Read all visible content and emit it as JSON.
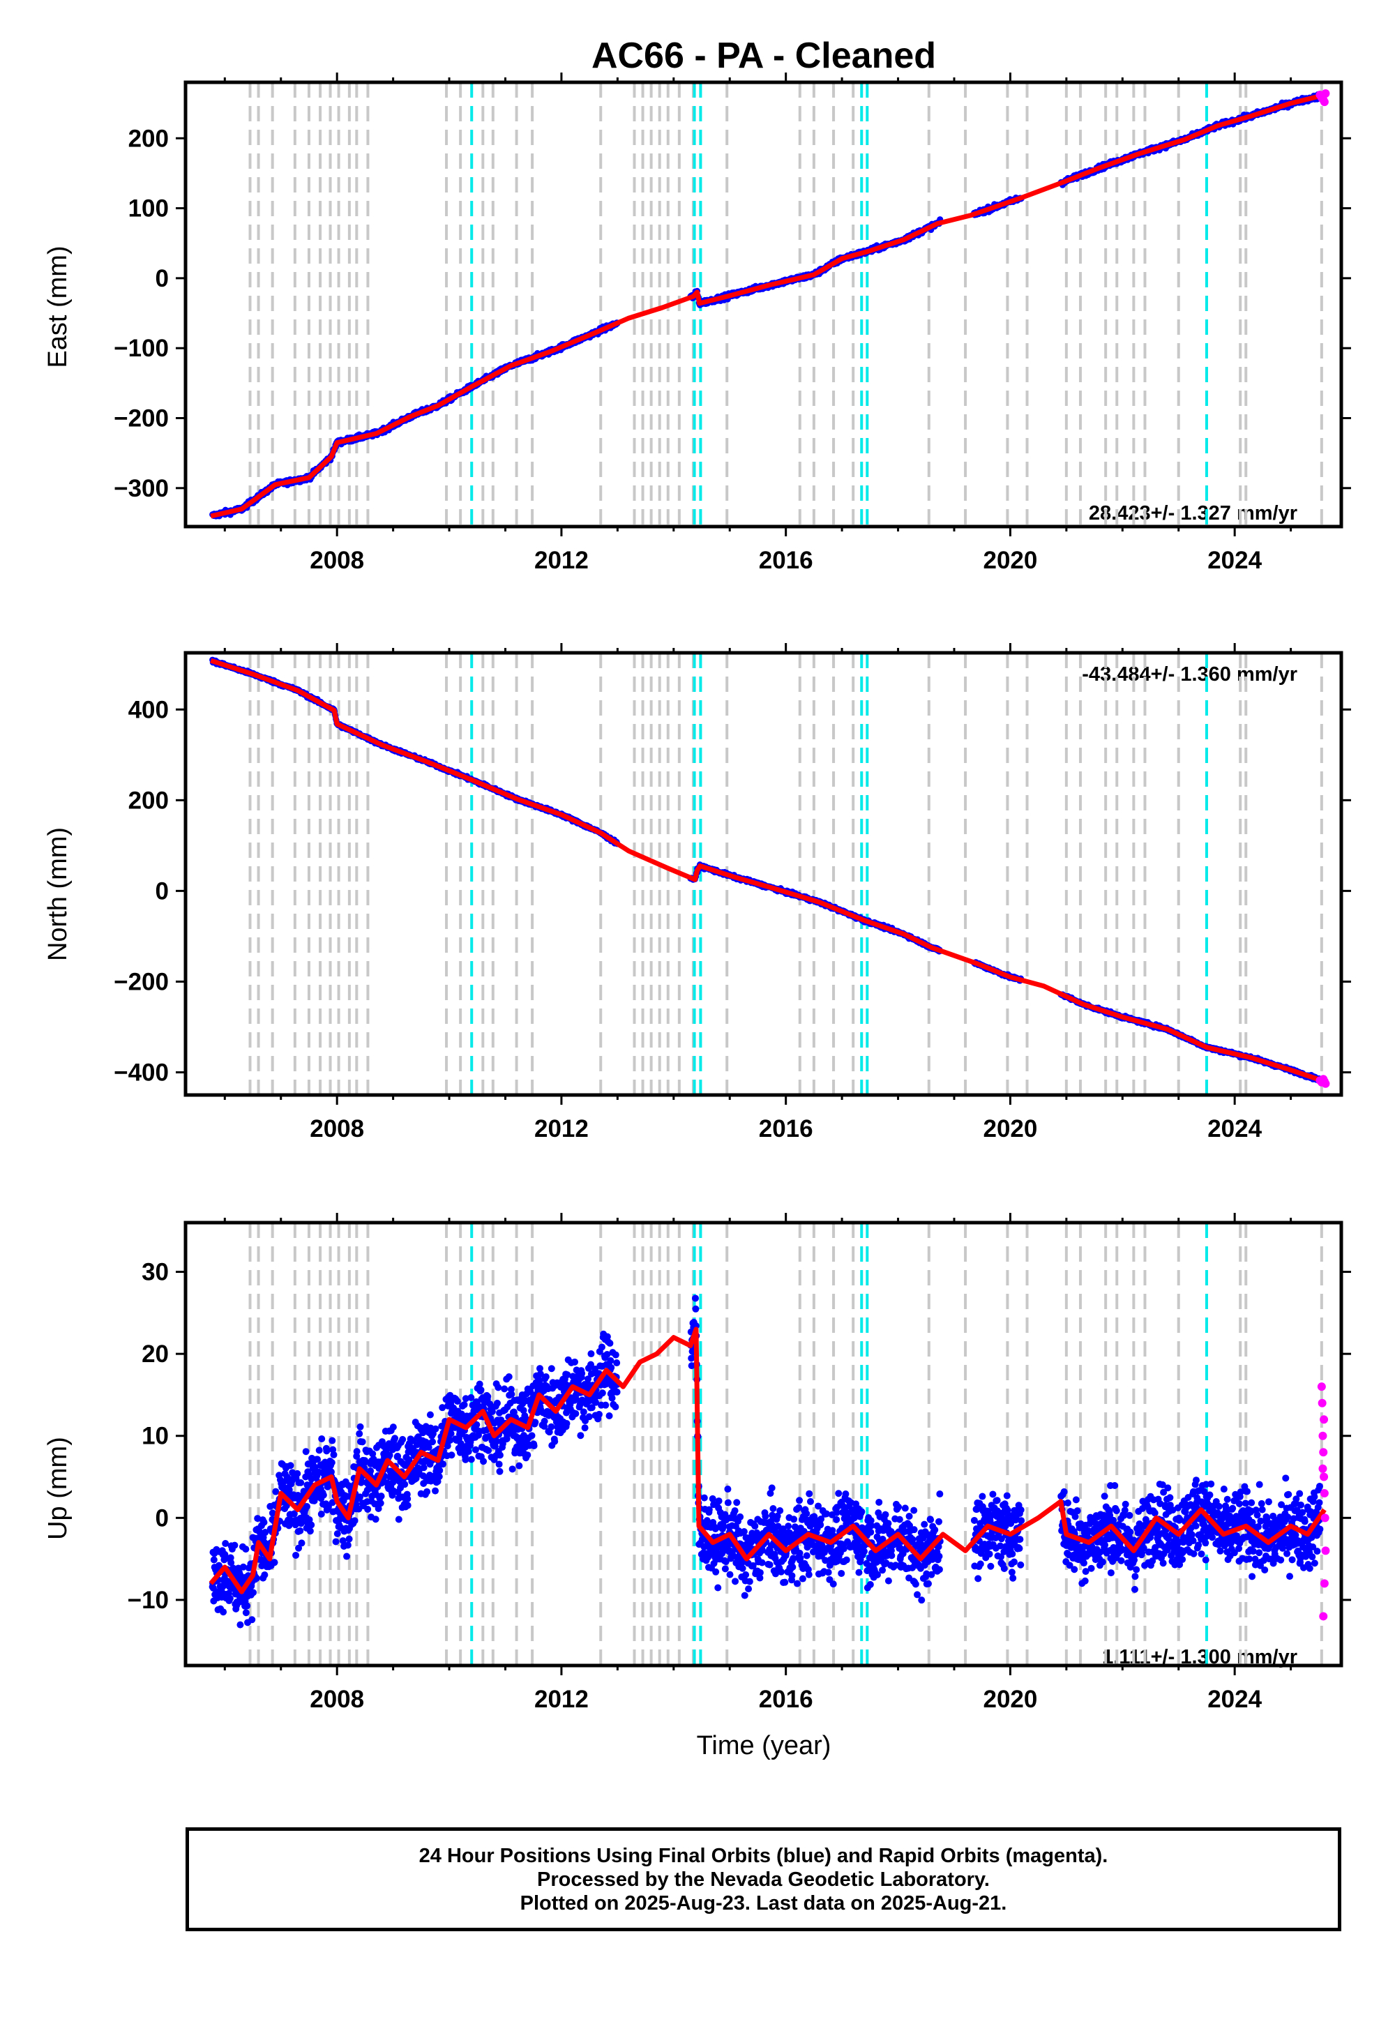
{
  "title": "AC66  - PA - Cleaned",
  "x_label": "Time (year)",
  "footer": {
    "line1": "24 Hour Positions Using Final Orbits (blue) and Rapid Orbits (magenta).",
    "line2": "Processed by the Nevada Geodetic Laboratory.",
    "line3": "Plotted on 2025-Aug-23. Last data on 2025-Aug-21."
  },
  "colors": {
    "final": "#0000ff",
    "rapid": "#ff00ff",
    "model": "#ff0000",
    "equipment_change": "#c8c8c8",
    "earthquake": "#00eaea"
  },
  "chart_data": [
    {
      "type": "scatter",
      "component": "east",
      "ylabel": "East (mm)",
      "rate_label": "28.423+/- 1.327 mm/yr",
      "xlim": [
        2005.3,
        2025.9
      ],
      "ylim": [
        -355,
        280
      ],
      "x_ticks": [
        "2008",
        "2012",
        "2016",
        "2020",
        "2024"
      ],
      "y_ticks": [
        -300,
        -200,
        -100,
        0,
        100,
        200
      ],
      "model": [
        [
          2005.75,
          -340
        ],
        [
          2006.3,
          -330
        ],
        [
          2006.9,
          -295
        ],
        [
          2007.5,
          -285
        ],
        [
          2007.9,
          -255
        ],
        [
          2008.0,
          -235
        ],
        [
          2008.7,
          -222
        ],
        [
          2009.3,
          -198
        ],
        [
          2009.8,
          -182
        ],
        [
          2010.4,
          -155
        ],
        [
          2011.1,
          -125
        ],
        [
          2011.8,
          -105
        ],
        [
          2012.6,
          -78
        ],
        [
          2013.2,
          -57
        ],
        [
          2013.8,
          -42
        ],
        [
          2014.35,
          -26
        ],
        [
          2014.42,
          -20
        ],
        [
          2014.46,
          -36
        ],
        [
          2015.0,
          -25
        ],
        [
          2015.7,
          -10
        ],
        [
          2016.5,
          5
        ],
        [
          2017.0,
          28
        ],
        [
          2017.45,
          38
        ],
        [
          2018.1,
          55
        ],
        [
          2018.7,
          78
        ],
        [
          2019.3,
          90
        ],
        [
          2020.2,
          115
        ],
        [
          2020.9,
          136
        ],
        [
          2021.6,
          158
        ],
        [
          2022.3,
          178
        ],
        [
          2023.1,
          198
        ],
        [
          2023.7,
          218
        ],
        [
          2024.3,
          232
        ],
        [
          2025.0,
          250
        ],
        [
          2025.6,
          262
        ]
      ],
      "rapid_points": [
        [
          2025.52,
          262
        ],
        [
          2025.55,
          258
        ],
        [
          2025.58,
          255
        ],
        [
          2025.6,
          252
        ],
        [
          2025.62,
          264
        ]
      ],
      "equipment_changes": [
        2006.45,
        2006.6,
        2006.85,
        2007.25,
        2007.5,
        2007.7,
        2007.88,
        2008.03,
        2008.22,
        2008.35,
        2008.55,
        2009.95,
        2010.2,
        2010.6,
        2010.78,
        2011.2,
        2011.48,
        2012.7,
        2013.3,
        2013.45,
        2013.6,
        2013.75,
        2013.9,
        2014.1,
        2014.35,
        2014.95,
        2016.25,
        2016.5,
        2016.85,
        2017.2,
        2018.55,
        2019.2,
        2019.95,
        2020.3,
        2021.0,
        2021.25,
        2021.7,
        2021.9,
        2022.2,
        2022.4,
        2023.0,
        2024.1,
        2024.2,
        2025.55
      ],
      "earthquakes": [
        2010.4,
        2014.37,
        2014.48,
        2017.35,
        2017.45,
        2023.5
      ]
    },
    {
      "type": "scatter",
      "component": "north",
      "ylabel": "North (mm)",
      "rate_label": "-43.484+/- 1.360 mm/yr",
      "xlim": [
        2005.3,
        2025.9
      ],
      "ylim": [
        -450,
        525
      ],
      "x_ticks": [
        "2008",
        "2012",
        "2016",
        "2020",
        "2024"
      ],
      "y_ticks": [
        -400,
        -200,
        0,
        200,
        400
      ],
      "model": [
        [
          2005.75,
          508
        ],
        [
          2006.5,
          478
        ],
        [
          2007.3,
          442
        ],
        [
          2007.95,
          398
        ],
        [
          2008.0,
          368
        ],
        [
          2008.8,
          322
        ],
        [
          2009.6,
          285
        ],
        [
          2010.4,
          245
        ],
        [
          2011.2,
          203
        ],
        [
          2012.0,
          168
        ],
        [
          2012.7,
          128
        ],
        [
          2013.2,
          88
        ],
        [
          2013.9,
          50
        ],
        [
          2014.38,
          25
        ],
        [
          2014.42,
          45
        ],
        [
          2014.47,
          55
        ],
        [
          2015.1,
          30
        ],
        [
          2015.8,
          5
        ],
        [
          2016.6,
          -25
        ],
        [
          2017.4,
          -65
        ],
        [
          2018.1,
          -95
        ],
        [
          2018.6,
          -125
        ],
        [
          2019.4,
          -160
        ],
        [
          2020.0,
          -190
        ],
        [
          2020.6,
          -210
        ],
        [
          2021.3,
          -250
        ],
        [
          2022.0,
          -278
        ],
        [
          2022.8,
          -305
        ],
        [
          2023.5,
          -345
        ],
        [
          2024.3,
          -368
        ],
        [
          2025.0,
          -395
        ],
        [
          2025.6,
          -420
        ]
      ],
      "rapid_points": [
        [
          2025.52,
          -418
        ],
        [
          2025.55,
          -422
        ],
        [
          2025.58,
          -415
        ],
        [
          2025.6,
          -420
        ],
        [
          2025.62,
          -425
        ]
      ],
      "equipment_changes": [
        2006.45,
        2006.6,
        2006.85,
        2007.25,
        2007.5,
        2007.7,
        2007.88,
        2008.03,
        2008.22,
        2008.35,
        2008.55,
        2009.95,
        2010.2,
        2010.6,
        2010.78,
        2011.2,
        2011.48,
        2012.7,
        2013.3,
        2013.45,
        2013.6,
        2013.75,
        2013.9,
        2014.1,
        2014.35,
        2014.95,
        2016.25,
        2016.5,
        2016.85,
        2017.2,
        2018.55,
        2019.2,
        2019.95,
        2020.3,
        2021.0,
        2021.25,
        2021.7,
        2021.9,
        2022.2,
        2022.4,
        2023.0,
        2024.1,
        2024.2,
        2025.55
      ],
      "earthquakes": [
        2010.4,
        2014.37,
        2014.48,
        2017.35,
        2017.45,
        2023.5
      ]
    },
    {
      "type": "scatter",
      "component": "up",
      "ylabel": "Up (mm)",
      "rate_label": "1.111+/- 1.300 mm/yr",
      "xlim": [
        2005.3,
        2025.9
      ],
      "ylim": [
        -18,
        36
      ],
      "x_ticks": [
        "2008",
        "2012",
        "2016",
        "2020",
        "2024"
      ],
      "y_ticks": [
        -10,
        0,
        10,
        20,
        30
      ],
      "model": [
        [
          2005.75,
          -8
        ],
        [
          2006.0,
          -6
        ],
        [
          2006.3,
          -9
        ],
        [
          2006.5,
          -7
        ],
        [
          2006.6,
          -3
        ],
        [
          2006.8,
          -5
        ],
        [
          2007.0,
          3
        ],
        [
          2007.3,
          1
        ],
        [
          2007.6,
          4
        ],
        [
          2007.9,
          5
        ],
        [
          2008.0,
          2
        ],
        [
          2008.2,
          0
        ],
        [
          2008.4,
          6
        ],
        [
          2008.7,
          4
        ],
        [
          2008.9,
          7
        ],
        [
          2009.2,
          5
        ],
        [
          2009.5,
          8
        ],
        [
          2009.8,
          7
        ],
        [
          2010.0,
          12
        ],
        [
          2010.3,
          11
        ],
        [
          2010.6,
          13
        ],
        [
          2010.8,
          10
        ],
        [
          2011.1,
          12
        ],
        [
          2011.4,
          11
        ],
        [
          2011.6,
          15
        ],
        [
          2011.9,
          13
        ],
        [
          2012.2,
          16
        ],
        [
          2012.5,
          15
        ],
        [
          2012.8,
          18
        ],
        [
          2013.1,
          16
        ],
        [
          2013.4,
          19
        ],
        [
          2013.7,
          20
        ],
        [
          2014.0,
          22
        ],
        [
          2014.3,
          21
        ],
        [
          2014.4,
          23
        ],
        [
          2014.45,
          -1
        ],
        [
          2014.7,
          -3
        ],
        [
          2015.0,
          -2
        ],
        [
          2015.3,
          -5
        ],
        [
          2015.7,
          -2
        ],
        [
          2016.0,
          -4
        ],
        [
          2016.4,
          -2
        ],
        [
          2016.8,
          -3
        ],
        [
          2017.2,
          -1
        ],
        [
          2017.6,
          -4
        ],
        [
          2018.0,
          -2
        ],
        [
          2018.4,
          -5
        ],
        [
          2018.8,
          -2
        ],
        [
          2019.2,
          -4
        ],
        [
          2019.6,
          -1
        ],
        [
          2020.0,
          -2
        ],
        [
          2020.5,
          0
        ],
        [
          2020.9,
          2
        ],
        [
          2021.0,
          -2
        ],
        [
          2021.4,
          -3
        ],
        [
          2021.8,
          -1
        ],
        [
          2022.2,
          -4
        ],
        [
          2022.6,
          0
        ],
        [
          2023.0,
          -2
        ],
        [
          2023.4,
          1
        ],
        [
          2023.8,
          -2
        ],
        [
          2024.2,
          -1
        ],
        [
          2024.6,
          -3
        ],
        [
          2025.0,
          -1
        ],
        [
          2025.3,
          -2
        ],
        [
          2025.6,
          1
        ]
      ],
      "rapid_points": [
        [
          2025.55,
          16
        ],
        [
          2025.56,
          14
        ],
        [
          2025.57,
          10
        ],
        [
          2025.58,
          8
        ],
        [
          2025.59,
          5
        ],
        [
          2025.6,
          3
        ],
        [
          2025.61,
          0
        ],
        [
          2025.62,
          -4
        ],
        [
          2025.6,
          -8
        ],
        [
          2025.58,
          -12
        ],
        [
          2025.57,
          6
        ],
        [
          2025.59,
          12
        ]
      ],
      "equipment_changes": [
        2006.45,
        2006.6,
        2006.85,
        2007.25,
        2007.5,
        2007.7,
        2007.88,
        2008.03,
        2008.22,
        2008.35,
        2008.55,
        2009.95,
        2010.2,
        2010.6,
        2010.78,
        2011.2,
        2011.48,
        2012.7,
        2013.3,
        2013.45,
        2013.6,
        2013.75,
        2013.9,
        2014.1,
        2014.35,
        2014.95,
        2016.25,
        2016.5,
        2016.85,
        2017.2,
        2018.55,
        2019.2,
        2019.95,
        2020.3,
        2021.0,
        2021.25,
        2021.7,
        2021.9,
        2022.2,
        2022.4,
        2023.0,
        2024.1,
        2024.2,
        2025.55
      ],
      "earthquakes": [
        2010.4,
        2014.37,
        2014.48,
        2017.35,
        2017.45,
        2023.5
      ]
    }
  ]
}
